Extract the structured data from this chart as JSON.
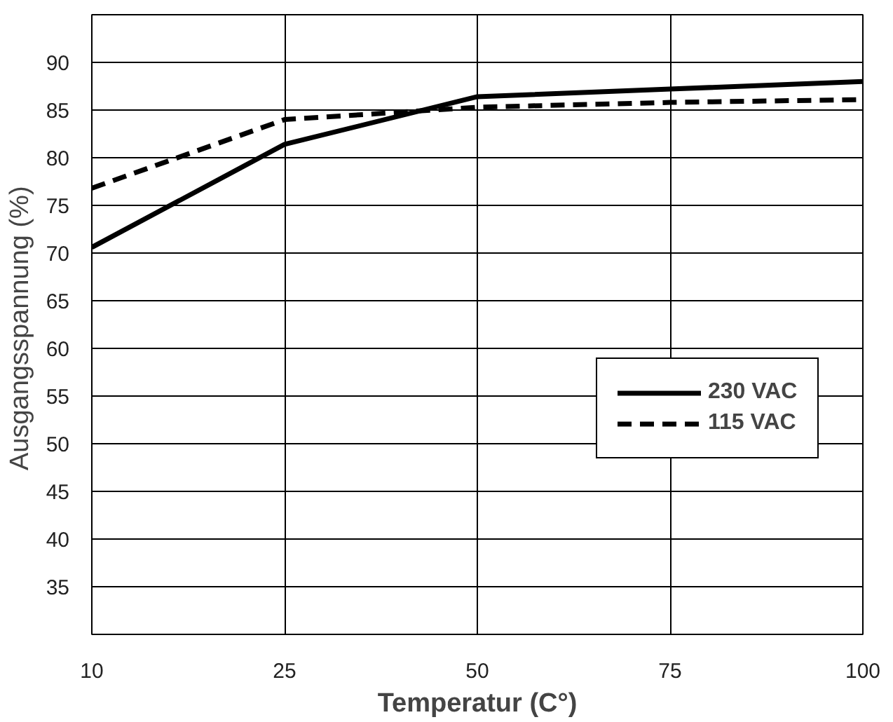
{
  "chart_data": {
    "type": "line",
    "xlabel": "Temperatur (C°)",
    "ylabel": "Ausgangsspannung  (%)",
    "categories": [
      "10",
      "25",
      "50",
      "75",
      "100"
    ],
    "series": [
      {
        "name": "230 VAC",
        "color": "#000000",
        "line_style": "solid",
        "values": [
          70.6,
          81.4,
          86.4,
          87.2,
          88.0
        ]
      },
      {
        "name": "115 VAC",
        "color": "#000000",
        "line_style": "dashed",
        "values": [
          76.8,
          84.0,
          85.3,
          85.8,
          86.1
        ]
      }
    ],
    "ylim": [
      30,
      95
    ],
    "yticks": [
      35,
      40,
      45,
      50,
      55,
      60,
      65,
      70,
      75,
      80,
      85,
      90
    ],
    "grid": true,
    "legend": "right",
    "marker": "none"
  }
}
